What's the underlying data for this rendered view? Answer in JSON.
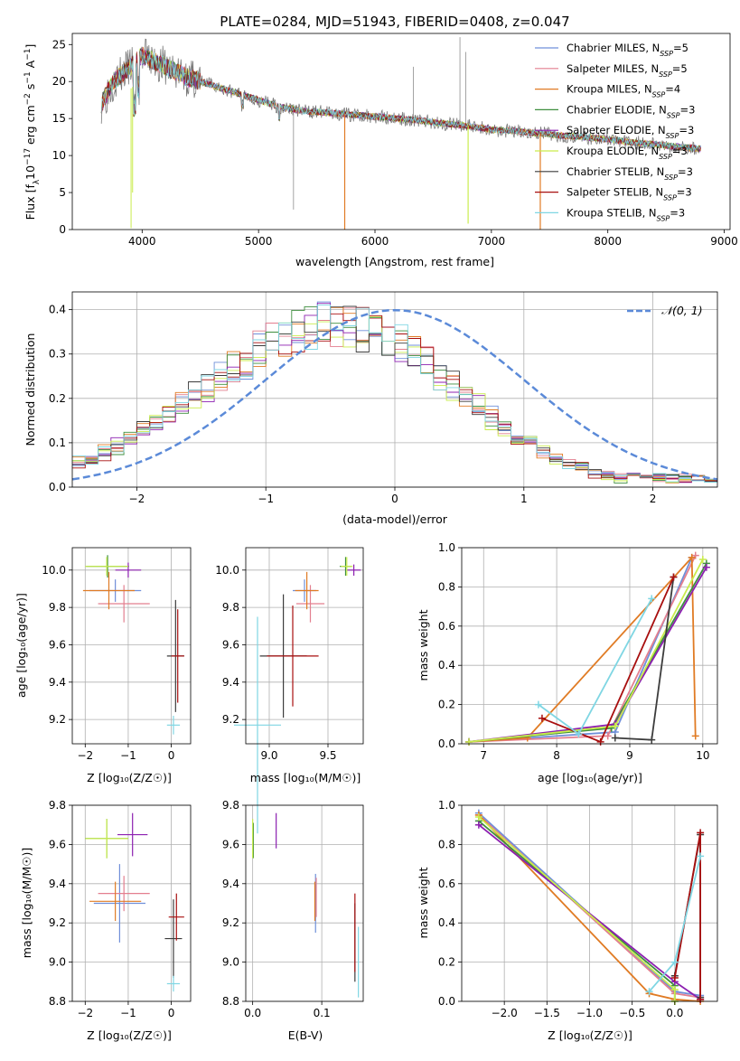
{
  "colors": {
    "Chabrier MILES": "#6f8fd9",
    "Salpeter MILES": "#e37f8f",
    "Kroupa MILES": "#e07b24",
    "Chabrier ELODIE": "#3f8f3f",
    "Salpeter ELODIE": "#8c1fb0",
    "Kroupa ELODIE": "#c9ec4c",
    "Chabrier STELIB": "#3c3c3c",
    "Salpeter STELIB": "#a80f0f",
    "Kroupa STELIB": "#7fd6e3",
    "normal": "#5b8ad8"
  },
  "chart_data": [
    {
      "type": "line",
      "title": "PLATE=0284, MJD=51943, FIBERID=0408, z=0.047",
      "xlabel": "wavelength [Angstrom, rest frame]",
      "ylabel": "Flux [f_λ10^-17 erg cm^-2 s^-1 A^-1]",
      "xlim": [
        3400,
        9050
      ],
      "ylim": [
        0,
        26.5
      ],
      "xticks": [
        "4000",
        "5000",
        "6000",
        "7000",
        "8000",
        "9000"
      ],
      "yticks": [
        "0",
        "5",
        "10",
        "15",
        "20",
        "25"
      ],
      "legend_position": "top-right",
      "legend": [
        {
          "model": "Chabrier MILES",
          "n": "5",
          "label": "Chabrier MILES, N",
          "sub": "SSP",
          "suffix": "=5"
        },
        {
          "model": "Salpeter MILES",
          "n": "5",
          "label": "Salpeter MILES, N",
          "sub": "SSP",
          "suffix": "=5"
        },
        {
          "model": "Kroupa MILES",
          "n": "4",
          "label": "Kroupa MILES, N",
          "sub": "SSP",
          "suffix": "=4"
        },
        {
          "model": "Chabrier ELODIE",
          "n": "3",
          "label": "Chabrier ELODIE, N",
          "sub": "SSP",
          "suffix": "=3"
        },
        {
          "model": "Salpeter ELODIE",
          "n": "3",
          "label": "Salpeter ELODIE, N",
          "sub": "SSP",
          "suffix": "=3"
        },
        {
          "model": "Kroupa ELODIE",
          "n": "3",
          "label": "Kroupa ELODIE, N",
          "sub": "SSP",
          "suffix": "=3"
        },
        {
          "model": "Chabrier STELIB",
          "n": "3",
          "label": "Chabrier STELIB, N",
          "sub": "SSP",
          "suffix": "=3"
        },
        {
          "model": "Salpeter STELIB",
          "n": "3",
          "label": "Salpeter STELIB, N",
          "sub": "SSP",
          "suffix": "=3"
        },
        {
          "model": "Kroupa STELIB",
          "n": "3",
          "label": "Kroupa STELIB, N",
          "sub": "SSP",
          "suffix": "=3"
        }
      ],
      "continuum": {
        "x": [
          3650,
          3750,
          3900,
          4000,
          4200,
          4400,
          4600,
          4800,
          5000,
          5200,
          5400,
          5600,
          5800,
          6000,
          6200,
          6400,
          6600,
          6800,
          7000,
          7200,
          7400,
          7600,
          7800,
          8000,
          8200,
          8400,
          8600,
          8800
        ],
        "y": [
          17,
          20,
          22,
          23.5,
          22,
          20.5,
          19.5,
          18.5,
          17.5,
          16.5,
          16,
          15.8,
          15.5,
          15.3,
          15,
          14.7,
          14.3,
          14,
          13.5,
          13.3,
          13,
          12.7,
          12.5,
          12.2,
          11.8,
          11.5,
          11.2,
          10.9
        ]
      },
      "observed_spikes": [
        {
          "x": 5300,
          "y": 2.7
        },
        {
          "x": 6330,
          "y": 22
        },
        {
          "x": 6730,
          "y": 26
        },
        {
          "x": 6780,
          "y": 24
        }
      ],
      "model_dips": [
        {
          "series": "Kroupa MILES",
          "x": 5740,
          "y": 0
        },
        {
          "series": "Kroupa ELODIE",
          "x": 6800,
          "y": 0.8
        },
        {
          "series": "Kroupa MILES",
          "x": 7420,
          "y": 0
        }
      ]
    },
    {
      "type": "line",
      "xlabel": "(data-model)/error",
      "ylabel": "Normed distribution",
      "xlim": [
        -2.5,
        2.5
      ],
      "ylim": [
        0,
        0.44
      ],
      "xticks": [
        "−2",
        "−1",
        "0",
        "1",
        "2"
      ],
      "yticks": [
        "0.0",
        "0.1",
        "0.2",
        "0.3",
        "0.4"
      ],
      "legend_position": "top-right",
      "legend": [
        {
          "series": "normal",
          "label": "𝒩(0, 1)",
          "style": "dashed"
        }
      ],
      "normal_curve": {
        "mu": 0,
        "sigma": 1
      },
      "histograms": {
        "bins": 50,
        "range": [
          -2.5,
          2.5
        ],
        "peak_x": -0.3,
        "spread": 0.9,
        "peak_y": 0.37,
        "tail_left": 0.04,
        "tail_right": 0.02
      }
    },
    {
      "type": "scatter",
      "xlabel": "Z [log₁₀(Z/Z☉)]",
      "ylabel": "age  [log₁₀(age/yr)]",
      "xlim": [
        -2.3,
        0.45
      ],
      "ylim": [
        9.07,
        10.12
      ],
      "xticks": [
        "−2",
        "−1",
        "0"
      ],
      "yticks": [
        "9.2",
        "9.4",
        "9.6",
        "9.8",
        "10.0"
      ],
      "points": [
        {
          "series": "Chabrier MILES",
          "x": -1.3,
          "y": 9.89,
          "xerr": 0.6,
          "yerr": 0.06
        },
        {
          "series": "Salpeter MILES",
          "x": -1.1,
          "y": 9.82,
          "xerr": 0.6,
          "yerr": 0.1
        },
        {
          "series": "Kroupa MILES",
          "x": -1.45,
          "y": 9.89,
          "xerr": 0.6,
          "yerr": 0.1
        },
        {
          "series": "Chabrier ELODIE",
          "x": -1.48,
          "y": 10.02,
          "xerr": 0.5,
          "yerr": 0.06
        },
        {
          "series": "Salpeter ELODIE",
          "x": -1.0,
          "y": 10.0,
          "xerr": 0.3,
          "yerr": 0.04
        },
        {
          "series": "Kroupa ELODIE",
          "x": -1.5,
          "y": 10.02,
          "xerr": 0.5,
          "yerr": 0.05
        },
        {
          "series": "Chabrier STELIB",
          "x": 0.1,
          "y": 9.54,
          "xerr": 0.2,
          "yerr": 0.3
        },
        {
          "series": "Salpeter STELIB",
          "x": 0.15,
          "y": 9.54,
          "xerr": 0.15,
          "yerr": 0.25
        },
        {
          "series": "Kroupa STELIB",
          "x": 0.05,
          "y": 9.17,
          "xerr": 0.15,
          "yerr": 0.05
        }
      ]
    },
    {
      "type": "scatter",
      "xlabel": "mass [log₁₀(M/M☉)]",
      "ylabel": "",
      "xlim": [
        8.8,
        9.8
      ],
      "ylim": [
        9.07,
        10.12
      ],
      "xticks": [
        "9.0",
        "9.5"
      ],
      "yticks": [
        "9.2",
        "9.4",
        "9.6",
        "9.8",
        "10.0"
      ],
      "points": [
        {
          "series": "Chabrier MILES",
          "x": 9.3,
          "y": 9.89,
          "xerr": 0.1,
          "yerr": 0.06
        },
        {
          "series": "Salpeter MILES",
          "x": 9.35,
          "y": 9.82,
          "xerr": 0.12,
          "yerr": 0.1
        },
        {
          "series": "Kroupa MILES",
          "x": 9.32,
          "y": 9.89,
          "xerr": 0.1,
          "yerr": 0.1
        },
        {
          "series": "Chabrier ELODIE",
          "x": 9.65,
          "y": 10.02,
          "xerr": 0.05,
          "yerr": 0.05
        },
        {
          "series": "Salpeter ELODIE",
          "x": 9.72,
          "y": 10.0,
          "xerr": 0.06,
          "yerr": 0.03
        },
        {
          "series": "Kroupa ELODIE",
          "x": 9.66,
          "y": 10.02,
          "xerr": 0.05,
          "yerr": 0.05
        },
        {
          "series": "Chabrier STELIB",
          "x": 9.12,
          "y": 9.54,
          "xerr": 0.2,
          "yerr": 0.33
        },
        {
          "series": "Salpeter STELIB",
          "x": 9.2,
          "y": 9.54,
          "xerr": 0.22,
          "yerr": 0.27
        },
        {
          "series": "Kroupa STELIB",
          "x": 8.9,
          "y": 9.17,
          "xerr": 0.2,
          "yerr": 0.58
        }
      ]
    },
    {
      "type": "line",
      "xlabel": "age  [log₁₀(age/yr)]",
      "ylabel": "mass weight",
      "xlim": [
        6.7,
        10.2
      ],
      "ylim": [
        0,
        1.0
      ],
      "xticks": [
        "7",
        "8",
        "9",
        "10"
      ],
      "yticks": [
        "0.0",
        "0.2",
        "0.4",
        "0.6",
        "0.8",
        "1.0"
      ],
      "series": [
        {
          "name": "Chabrier MILES",
          "x": [
            6.8,
            8.8,
            9.85
          ],
          "y": [
            0.01,
            0.06,
            0.95
          ]
        },
        {
          "name": "Salpeter MILES",
          "x": [
            6.8,
            8.7,
            9.9
          ],
          "y": [
            0.01,
            0.04,
            0.96
          ]
        },
        {
          "name": "Kroupa MILES",
          "x": [
            6.8,
            7.6,
            9.85,
            9.9
          ],
          "y": [
            0.01,
            0.03,
            0.95,
            0.04
          ]
        },
        {
          "name": "Chabrier ELODIE",
          "x": [
            6.8,
            8.75,
            10.05
          ],
          "y": [
            0.01,
            0.08,
            0.92
          ]
        },
        {
          "name": "Salpeter ELODIE",
          "x": [
            6.8,
            8.8,
            10.05
          ],
          "y": [
            0.01,
            0.1,
            0.9
          ]
        },
        {
          "name": "Kroupa ELODIE",
          "x": [
            6.8,
            8.8,
            10.0
          ],
          "y": [
            0.01,
            0.09,
            0.94
          ]
        },
        {
          "name": "Chabrier STELIB",
          "x": [
            8.8,
            9.3,
            9.6
          ],
          "y": [
            0.03,
            0.02,
            0.85
          ]
        },
        {
          "name": "Salpeter STELIB",
          "x": [
            7.8,
            8.6,
            9.6
          ],
          "y": [
            0.13,
            0.01,
            0.85
          ]
        },
        {
          "name": "Kroupa STELIB",
          "x": [
            7.75,
            8.3,
            9.3
          ],
          "y": [
            0.2,
            0.05,
            0.74
          ]
        }
      ]
    },
    {
      "type": "scatter",
      "xlabel": "Z [log₁₀(Z/Z☉)]",
      "ylabel": "mass [log₁₀(M/M☉)]",
      "xlim": [
        -2.3,
        0.45
      ],
      "ylim": [
        8.8,
        9.8
      ],
      "xticks": [
        "−2",
        "−1",
        "0"
      ],
      "yticks": [
        "8.8",
        "9.0",
        "9.2",
        "9.4",
        "9.6",
        "9.8"
      ],
      "points": [
        {
          "series": "Chabrier MILES",
          "x": -1.2,
          "y": 9.3,
          "xerr": 0.6,
          "yerr": 0.2
        },
        {
          "series": "Salpeter MILES",
          "x": -1.1,
          "y": 9.35,
          "xerr": 0.6,
          "yerr": 0.09
        },
        {
          "series": "Kroupa MILES",
          "x": -1.3,
          "y": 9.31,
          "xerr": 0.6,
          "yerr": 0.1
        },
        {
          "series": "Chabrier ELODIE",
          "x": -1.5,
          "y": 9.63,
          "xerr": 0.5,
          "yerr": 0.1
        },
        {
          "series": "Salpeter ELODIE",
          "x": -0.9,
          "y": 9.65,
          "xerr": 0.35,
          "yerr": 0.11
        },
        {
          "series": "Kroupa ELODIE",
          "x": -1.5,
          "y": 9.63,
          "xerr": 0.5,
          "yerr": 0.1
        },
        {
          "series": "Chabrier STELIB",
          "x": 0.05,
          "y": 9.12,
          "xerr": 0.2,
          "yerr": 0.2
        },
        {
          "series": "Salpeter STELIB",
          "x": 0.12,
          "y": 9.23,
          "xerr": 0.18,
          "yerr": 0.12
        },
        {
          "series": "Kroupa STELIB",
          "x": 0.05,
          "y": 8.89,
          "xerr": 0.15,
          "yerr": 0.04
        }
      ]
    },
    {
      "type": "scatter",
      "xlabel": "E(B-V)",
      "ylabel": "",
      "xlim": [
        -0.01,
        0.16
      ],
      "ylim": [
        8.8,
        9.8
      ],
      "xticks": [
        "0.0",
        "0.1"
      ],
      "yticks": [
        "8.8",
        "9.0",
        "9.2",
        "9.4",
        "9.6",
        "9.8"
      ],
      "points": [
        {
          "series": "Chabrier MILES",
          "x": 0.091,
          "y": 9.3,
          "xerr": 0,
          "yerr": 0.15
        },
        {
          "series": "Salpeter MILES",
          "x": 0.092,
          "y": 9.33,
          "xerr": 0,
          "yerr": 0.1
        },
        {
          "series": "Kroupa MILES",
          "x": 0.09,
          "y": 9.31,
          "xerr": 0,
          "yerr": 0.1
        },
        {
          "series": "Chabrier ELODIE",
          "x": 0.001,
          "y": 9.62,
          "xerr": 0,
          "yerr": 0.09
        },
        {
          "series": "Salpeter ELODIE",
          "x": 0.034,
          "y": 9.67,
          "xerr": 0,
          "yerr": 0.09
        },
        {
          "series": "Kroupa ELODIE",
          "x": 0.0,
          "y": 9.63,
          "xerr": 0,
          "yerr": 0.1
        },
        {
          "series": "Chabrier STELIB",
          "x": 0.148,
          "y": 9.1,
          "xerr": 0,
          "yerr": 0.2
        },
        {
          "series": "Salpeter STELIB",
          "x": 0.148,
          "y": 9.15,
          "xerr": 0,
          "yerr": 0.2
        },
        {
          "series": "Kroupa STELIB",
          "x": 0.153,
          "y": 9.0,
          "xerr": 0,
          "yerr": 0.18
        }
      ]
    },
    {
      "type": "line",
      "xlabel": "Z [log₁₀(Z/Z☉)]",
      "ylabel": "mass weight",
      "xlim": [
        -2.5,
        0.5
      ],
      "ylim": [
        0,
        1.0
      ],
      "xticks": [
        "−2.0",
        "−1.5",
        "−1.0",
        "−0.5",
        "0.0"
      ],
      "yticks": [
        "0.0",
        "0.2",
        "0.4",
        "0.6",
        "0.8",
        "1.0"
      ],
      "series": [
        {
          "name": "Chabrier MILES",
          "x": [
            -2.3,
            0.0,
            0.3
          ],
          "y": [
            0.96,
            0.05,
            0.03
          ]
        },
        {
          "name": "Salpeter MILES",
          "x": [
            -2.3,
            0.0,
            0.3
          ],
          "y": [
            0.95,
            0.04,
            0.02
          ]
        },
        {
          "name": "Kroupa MILES",
          "x": [
            -2.3,
            -0.3,
            0.0,
            0.3
          ],
          "y": [
            0.95,
            0.04,
            0.01,
            0.0
          ]
        },
        {
          "name": "Chabrier ELODIE",
          "x": [
            -2.3,
            0.0,
            0.0
          ],
          "y": [
            0.92,
            0.08,
            0.0
          ]
        },
        {
          "name": "Salpeter ELODIE",
          "x": [
            -2.3,
            0.0,
            0.3
          ],
          "y": [
            0.9,
            0.1,
            0.01
          ]
        },
        {
          "name": "Kroupa ELODIE",
          "x": [
            -2.3,
            0.0,
            0.0
          ],
          "y": [
            0.94,
            0.06,
            0.0
          ]
        },
        {
          "name": "Chabrier STELIB",
          "x": [
            0.0,
            0.3,
            0.3
          ],
          "y": [
            0.13,
            0.85,
            0.02
          ]
        },
        {
          "name": "Salpeter STELIB",
          "x": [
            0.0,
            0.3,
            0.3
          ],
          "y": [
            0.12,
            0.86,
            0.01
          ]
        },
        {
          "name": "Kroupa STELIB",
          "x": [
            -0.3,
            0.0,
            0.3
          ],
          "y": [
            0.05,
            0.2,
            0.74
          ]
        }
      ]
    }
  ]
}
